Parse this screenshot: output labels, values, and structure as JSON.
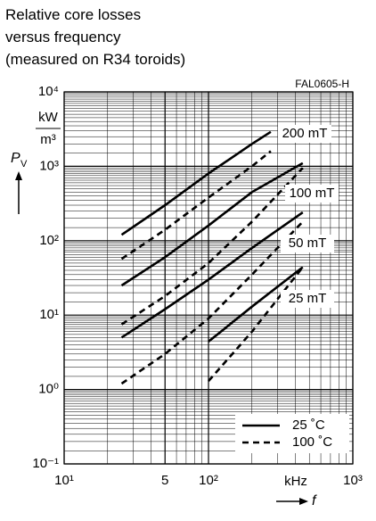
{
  "chart_data": {
    "type": "line",
    "title": [
      "Relative core losses",
      "versus frequency",
      "(measured on R34 toroids)"
    ],
    "figure_id": "FAL0605-H",
    "y_label": "P",
    "y_label_sub": "V",
    "y_unit_top": "kW",
    "y_unit_bottom": "m³",
    "x_label": "f",
    "x_unit": "kHz",
    "log_x": true,
    "log_y": true,
    "grid": true,
    "xlim": [
      10,
      1000
    ],
    "ylim": [
      0.1,
      10000
    ],
    "xticks": [
      {
        "value": 10,
        "label": "10¹"
      },
      {
        "value": 50,
        "label": "5"
      },
      {
        "value": 100,
        "label": "10²"
      },
      {
        "value": 1000,
        "label": "10³"
      }
    ],
    "yticks": [
      {
        "value": 0.1,
        "label": "10⁻¹"
      },
      {
        "value": 1,
        "label": "10⁰"
      },
      {
        "value": 10,
        "label": "10¹"
      },
      {
        "value": 100,
        "label": "10²"
      },
      {
        "value": 1000,
        "label": "10³"
      },
      {
        "value": 10000,
        "label": "10⁴"
      }
    ],
    "legend": [
      {
        "name": "25 ˚C",
        "dash": "solid",
        "color": "#000000"
      },
      {
        "name": "100 ˚C",
        "dash": "dashed",
        "color": "#000000"
      }
    ],
    "legend_position": "lower right",
    "curves": [
      {
        "label": "200 mT",
        "series": [
          {
            "x": [
              25,
              50,
              100,
              200,
              270
            ],
            "values": [
              120,
              300,
              800,
              2000,
              2900
            ]
          },
          {
            "x": [
              25,
              50,
              100,
              200,
              270
            ],
            "values": [
              57,
              140,
              380,
              1000,
              1600
            ]
          }
        ]
      },
      {
        "label": "100 mT",
        "series": [
          {
            "x": [
              25,
              50,
              100,
              200,
              450
            ],
            "values": [
              25,
              60,
              160,
              450,
              1100
            ]
          },
          {
            "x": [
              25,
              50,
              100,
              200,
              450
            ],
            "values": [
              7.5,
              18,
              50,
              180,
              950
            ]
          }
        ]
      },
      {
        "label": "50 mT",
        "series": [
          {
            "x": [
              25,
              50,
              100,
              200,
              450
            ],
            "values": [
              5,
              12,
              30,
              80,
              240
            ]
          },
          {
            "x": [
              25,
              50,
              100,
              200,
              450
            ],
            "values": [
              1.2,
              3,
              9,
              35,
              180
            ]
          }
        ]
      },
      {
        "label": "25 mT",
        "series": [
          {
            "x": [
              100,
              200,
              450
            ],
            "values": [
              4.4,
              13,
              44
            ]
          },
          {
            "x": [
              100,
              200,
              450
            ],
            "values": [
              1.3,
              6,
              44
            ]
          }
        ]
      }
    ]
  }
}
